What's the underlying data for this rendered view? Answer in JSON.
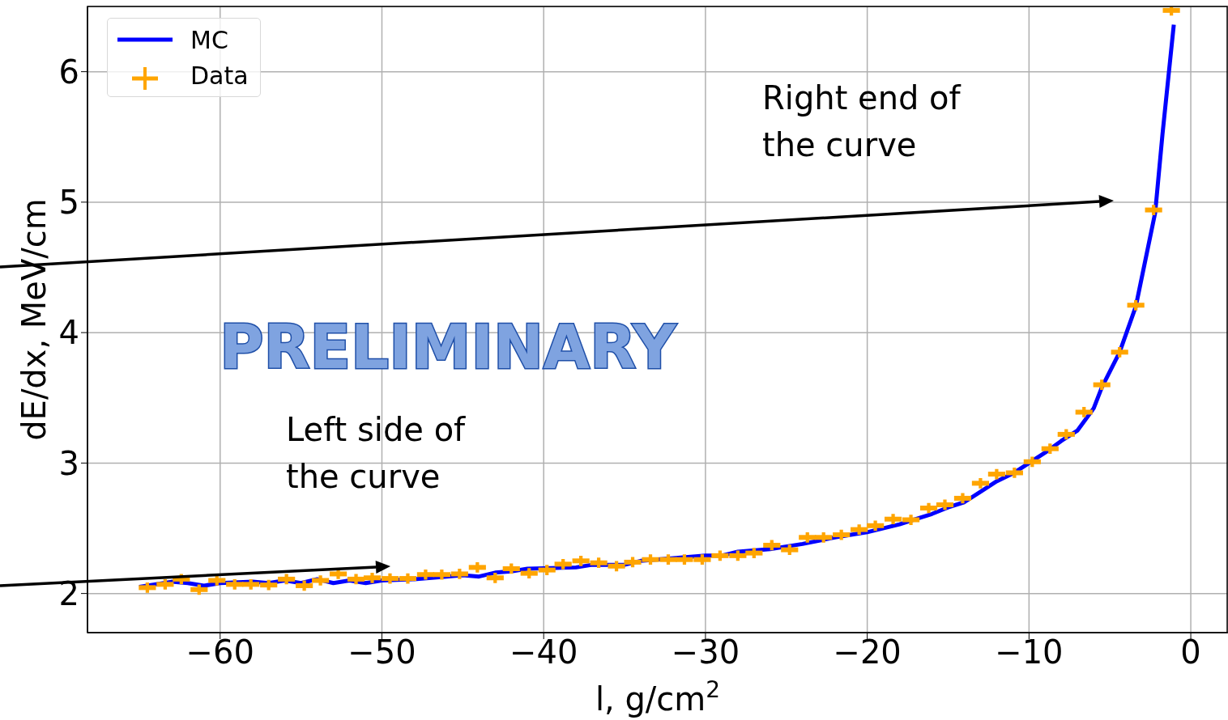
{
  "chart_data": {
    "type": "scatter",
    "xlabel": "l, g/cm$^{2}$",
    "ylabel": "dE/dx, MeV/cm",
    "xlim": [
      -68.2,
      2.3
    ],
    "ylim": [
      1.7,
      6.5
    ],
    "xticks": [
      {
        "value": -60,
        "label": "−60"
      },
      {
        "value": -50,
        "label": "−50"
      },
      {
        "value": -40,
        "label": "−40"
      },
      {
        "value": -30,
        "label": "−30"
      },
      {
        "value": -20,
        "label": "−20"
      },
      {
        "value": -10,
        "label": "−10"
      },
      0
    ],
    "yticks": [
      2,
      3,
      4,
      5,
      6
    ],
    "grid": true,
    "legend": "top left",
    "series": [
      {
        "name": "MC",
        "type": "line",
        "color": "#0000ff",
        "marker": "none",
        "x": [
          -65,
          -63,
          -62,
          -61,
          -60,
          -58,
          -57,
          -56,
          -55,
          -54,
          -53,
          -52,
          -51,
          -50,
          -48,
          -46,
          -45,
          -44,
          -43,
          -42,
          -41,
          -38,
          -37,
          -36,
          -35,
          -34,
          -32,
          -30,
          -29,
          -28,
          -26,
          -24,
          -22,
          -20,
          -18,
          -17,
          -16,
          -15,
          -14,
          -13,
          -12,
          -11,
          -10,
          -9,
          -8,
          -7,
          -6,
          -5.5,
          -4.4,
          -3.4,
          -2.2,
          -1.75,
          -1.05
        ],
        "values": [
          2.05,
          2.09,
          2.08,
          2.06,
          2.08,
          2.09,
          2.08,
          2.1,
          2.08,
          2.11,
          2.08,
          2.1,
          2.08,
          2.1,
          2.11,
          2.13,
          2.14,
          2.13,
          2.16,
          2.17,
          2.19,
          2.2,
          2.22,
          2.22,
          2.22,
          2.25,
          2.27,
          2.29,
          2.29,
          2.32,
          2.34,
          2.38,
          2.43,
          2.47,
          2.53,
          2.57,
          2.61,
          2.66,
          2.7,
          2.78,
          2.86,
          2.92,
          3.0,
          3.08,
          3.17,
          3.25,
          3.42,
          3.58,
          3.85,
          4.2,
          4.92,
          5.52,
          6.36
        ]
      },
      {
        "name": "Data",
        "color": "#ffa500",
        "marker": "cross",
        "x": [
          -64.5,
          -63.4,
          -62.4,
          -61.3,
          -60.2,
          -59.1,
          -58.1,
          -57.0,
          -55.9,
          -54.8,
          -53.8,
          -52.7,
          -51.6,
          -50.6,
          -49.5,
          -48.4,
          -47.3,
          -46.3,
          -45.2,
          -44.1,
          -43.0,
          -42.0,
          -40.9,
          -39.8,
          -38.8,
          -37.7,
          -36.6,
          -35.5,
          -34.5,
          -33.4,
          -32.3,
          -31.3,
          -30.2,
          -29.1,
          -28.0,
          -27.0,
          -25.9,
          -24.8,
          -23.7,
          -22.7,
          -21.6,
          -20.5,
          -19.5,
          -18.4,
          -17.3,
          -16.2,
          -15.2,
          -14.1,
          -13.0,
          -12.0,
          -10.9,
          -9.8,
          -8.7,
          -7.7,
          -6.6,
          -5.5,
          -4.4,
          -3.4,
          -2.3,
          -1.2
        ],
        "values": [
          2.045,
          2.07,
          2.11,
          2.03,
          2.1,
          2.07,
          2.07,
          2.065,
          2.11,
          2.06,
          2.1,
          2.15,
          2.11,
          2.12,
          2.115,
          2.115,
          2.145,
          2.145,
          2.15,
          2.2,
          2.12,
          2.19,
          2.155,
          2.18,
          2.225,
          2.25,
          2.235,
          2.21,
          2.24,
          2.26,
          2.26,
          2.26,
          2.26,
          2.29,
          2.29,
          2.31,
          2.37,
          2.335,
          2.43,
          2.43,
          2.45,
          2.49,
          2.52,
          2.57,
          2.565,
          2.655,
          2.68,
          2.73,
          2.845,
          2.915,
          2.925,
          3.01,
          3.11,
          3.22,
          3.39,
          3.6,
          3.85,
          4.21,
          4.94,
          6.47
        ],
        "xerrors": [
          0.53,
          0.53,
          0.53,
          0.53,
          0.53,
          0.53,
          0.53,
          0.53,
          0.53,
          0.53,
          0.53,
          0.53,
          0.53,
          0.53,
          0.53,
          0.53,
          0.53,
          0.53,
          0.53,
          0.53,
          0.53,
          0.53,
          0.53,
          0.53,
          0.53,
          0.53,
          0.53,
          0.53,
          0.53,
          0.53,
          0.53,
          0.53,
          0.53,
          0.53,
          0.53,
          0.53,
          0.53,
          0.53,
          0.53,
          0.53,
          0.53,
          0.53,
          0.53,
          0.53,
          0.53,
          0.53,
          0.53,
          0.53,
          0.53,
          0.53,
          0.53,
          0.53,
          0.53,
          0.53,
          0.53,
          0.53,
          0.53,
          0.53,
          0.53,
          0.53
        ]
      }
    ],
    "annotations": [
      "Right end of\nthe curve",
      "PRELIMINARY",
      "Left side of\nthe curve"
    ]
  }
}
